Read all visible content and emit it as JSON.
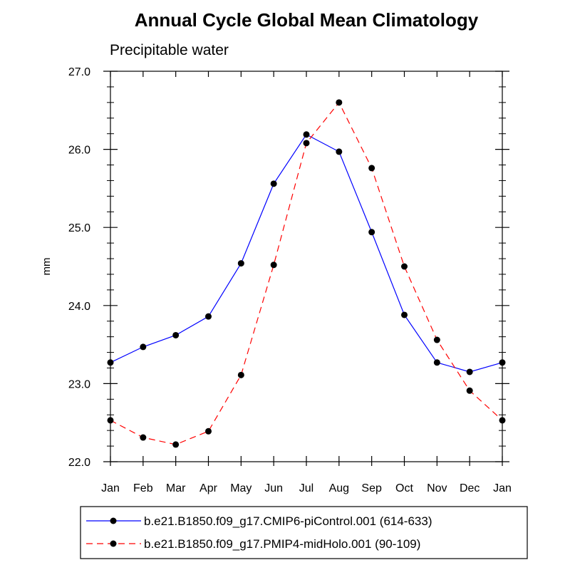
{
  "chart_data": {
    "type": "line",
    "title": "Annual Cycle Global Mean Climatology",
    "subtitle": "Precipitable water",
    "ylabel": "mm",
    "xlabel": "",
    "categories": [
      "Jan",
      "Feb",
      "Mar",
      "Apr",
      "May",
      "Jun",
      "Jul",
      "Aug",
      "Sep",
      "Oct",
      "Nov",
      "Dec",
      "Jan"
    ],
    "ylim": [
      22.0,
      27.0
    ],
    "y_ticks": [
      "22.0",
      "23.0",
      "24.0",
      "25.0",
      "26.0",
      "27.0"
    ],
    "y_minor_step": 0.2,
    "grid": false,
    "legend_position": "bottom",
    "series": [
      {
        "name": "b.e21.B1850.f09_g17.CMIP6-piControl.001 (614-633)",
        "color": "#0000ff",
        "line_style": "solid",
        "marker": "filled-circle",
        "values": [
          23.27,
          23.47,
          23.62,
          23.86,
          24.54,
          25.56,
          26.19,
          25.97,
          24.94,
          23.88,
          23.27,
          23.15,
          23.27
        ]
      },
      {
        "name": "b.e21.B1850.f09_g17.PMIP4-midHolo.001 (90-109)",
        "color": "#ff0000",
        "line_style": "dashed",
        "marker": "filled-circle",
        "values": [
          22.53,
          22.31,
          22.22,
          22.39,
          23.11,
          24.52,
          26.08,
          26.6,
          25.76,
          24.5,
          23.56,
          22.91,
          22.53
        ]
      }
    ]
  }
}
